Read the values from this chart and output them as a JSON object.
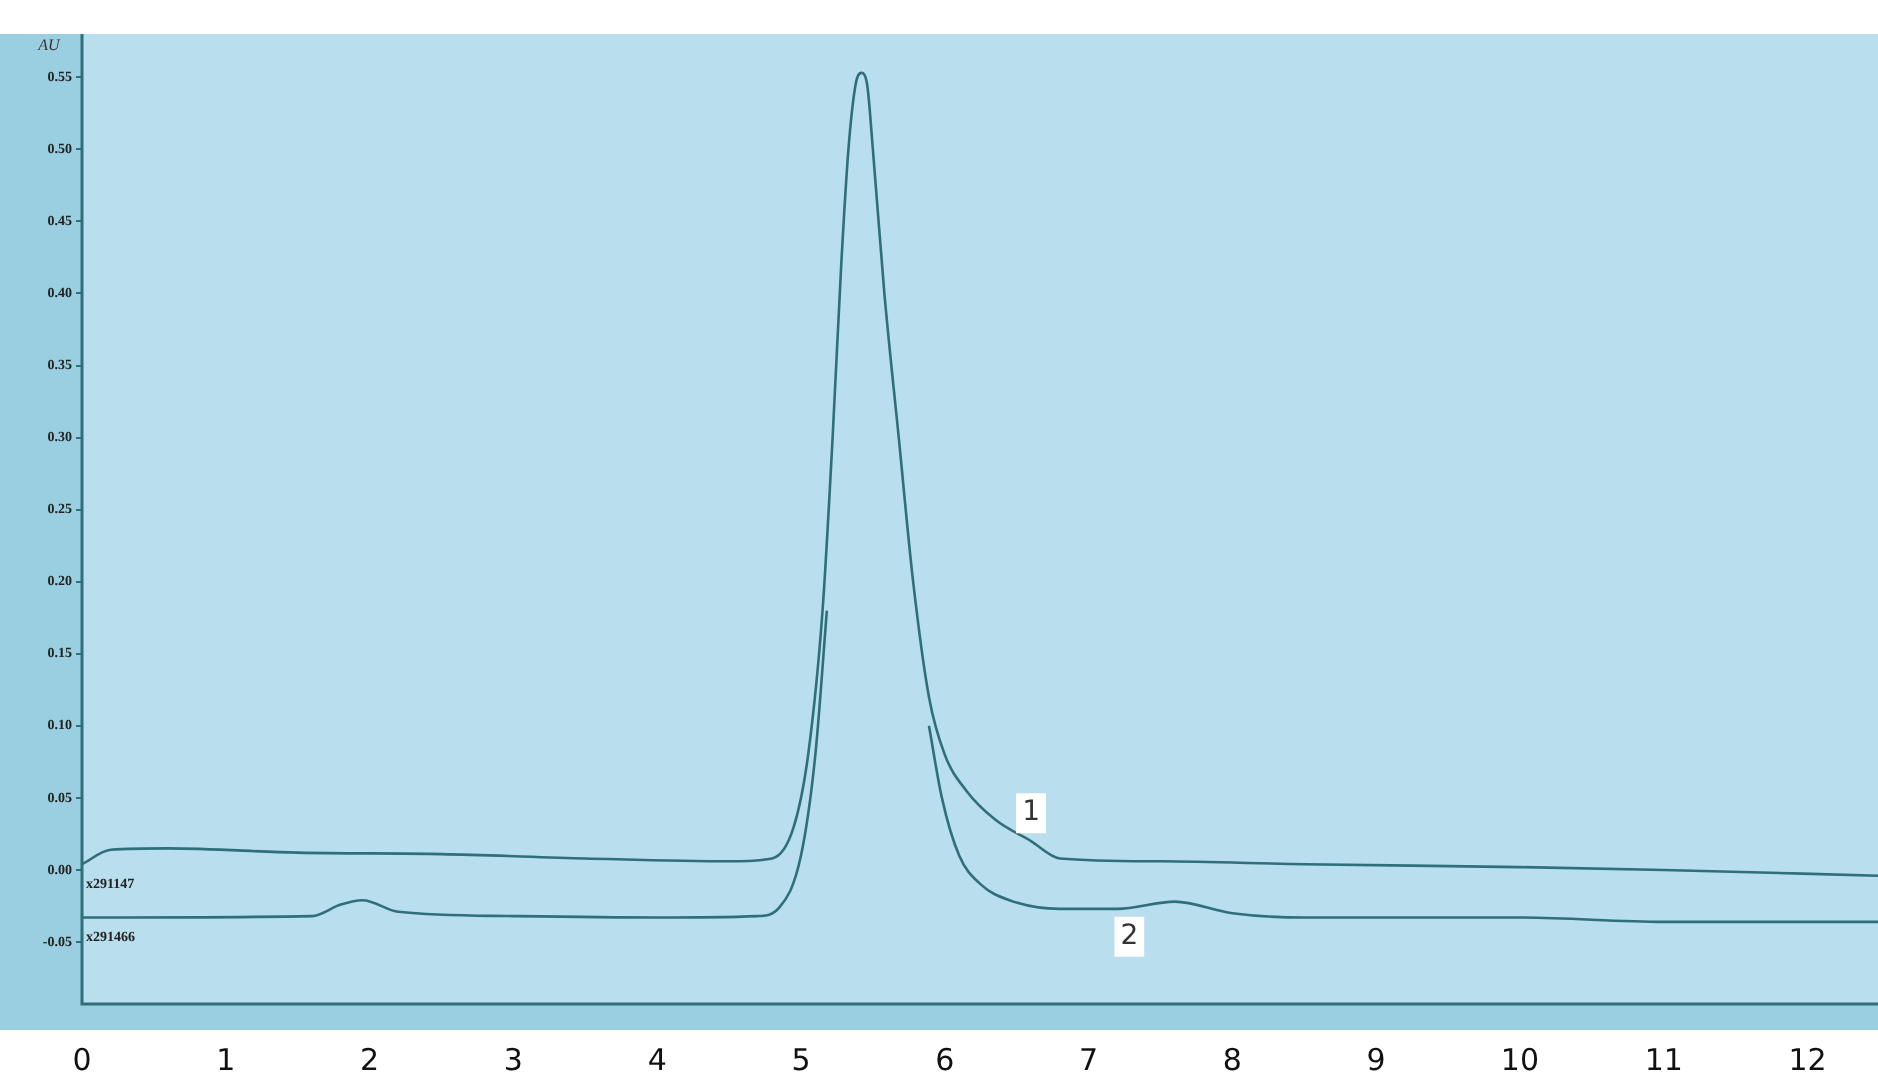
{
  "chart_data": {
    "type": "line",
    "ylabel": "AU",
    "xlim": [
      0,
      12.49
    ],
    "xticks": [
      0,
      1,
      2,
      3,
      4,
      5,
      6,
      7,
      8,
      9,
      10,
      11,
      12
    ],
    "ylim": [
      -0.093,
      0.58
    ],
    "yticks": [
      {
        "value": -0.05,
        "label": "-0.05"
      },
      {
        "value": 0,
        "label": "0.00"
      },
      {
        "value": 0.05,
        "label": "0.05"
      },
      {
        "value": 0.1,
        "label": "0.10"
      },
      {
        "value": 0.15,
        "label": "0.15"
      },
      {
        "value": 0.2,
        "label": "0.20"
      },
      {
        "value": 0.25,
        "label": "0.25"
      },
      {
        "value": 0.3,
        "label": "0.30"
      },
      {
        "value": 0.35,
        "label": "0.35"
      },
      {
        "value": 0.4,
        "label": "0.40"
      },
      {
        "value": 0.45,
        "label": "0.45"
      },
      {
        "value": 0.5,
        "label": "0.50"
      },
      {
        "value": 0.55,
        "label": "0.55"
      }
    ],
    "grid": false,
    "legend": false,
    "marker": "none",
    "line_style": "solid",
    "series": [
      {
        "name": "1",
        "color": "#2f6f78",
        "x": [
          0,
          0.2,
          0.6,
          1.5,
          2.5,
          3.5,
          4.5,
          4.8,
          4.95,
          5.05,
          5.15,
          5.22,
          5.28,
          5.33,
          5.38,
          5.42,
          5.46,
          5.5,
          5.58,
          5.68,
          5.78,
          5.89,
          6.0,
          6.15,
          6.35,
          6.6,
          6.8,
          7.5,
          8.5,
          10,
          11,
          12.49
        ],
        "values": [
          0.004,
          0.014,
          0.015,
          0.012,
          0.011,
          0.008,
          0.006,
          0.008,
          0.03,
          0.08,
          0.18,
          0.3,
          0.42,
          0.5,
          0.545,
          0.553,
          0.545,
          0.5,
          0.4,
          0.3,
          0.2,
          0.12,
          0.08,
          0.055,
          0.035,
          0.02,
          0.008,
          0.006,
          0.004,
          0.002,
          0,
          -0.004
        ]
      },
      {
        "name": "2",
        "color": "#2f6f78",
        "x": [
          0,
          1.6,
          1.8,
          1.95,
          2.2,
          3,
          4,
          4.7,
          4.85,
          5.0,
          5.1,
          5.18,
          5.22,
          5.28,
          5.33,
          5.38,
          5.42,
          5.46,
          5.5,
          5.58,
          5.68,
          5.78,
          5.89,
          5.98,
          6.1,
          6.25,
          6.45,
          6.8,
          7.2,
          7.6,
          8,
          8.5,
          10,
          11,
          12.49
        ],
        "values": [
          -0.033,
          -0.032,
          -0.024,
          -0.021,
          -0.029,
          -0.032,
          -0.033,
          -0.032,
          -0.026,
          0.01,
          0.08,
          0.18,
          null,
          null,
          null,
          null,
          null,
          null,
          null,
          null,
          null,
          null,
          0.1,
          0.05,
          0.01,
          -0.01,
          -0.021,
          -0.027,
          -0.027,
          -0.022,
          -0.03,
          -0.033,
          -0.033,
          -0.036,
          -0.036
        ]
      }
    ],
    "annotations": [
      "x291147",
      "x291466"
    ]
  }
}
